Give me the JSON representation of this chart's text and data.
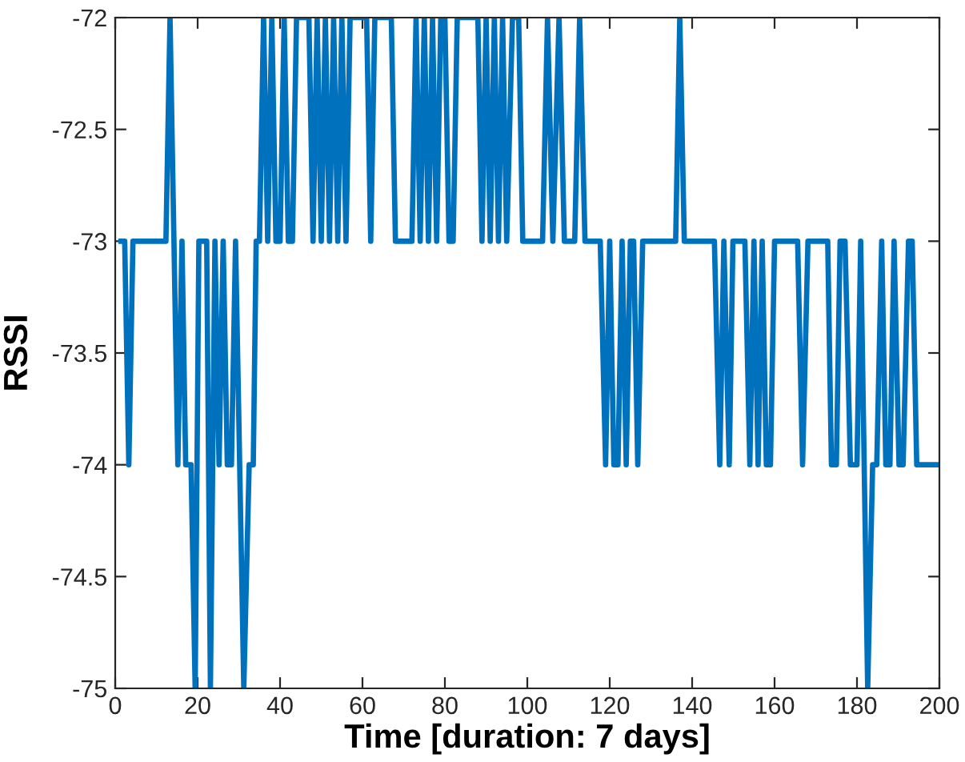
{
  "chart_data": {
    "type": "line",
    "xlabel": "Time [duration: 7 days]",
    "ylabel": "RSSI",
    "xlim": [
      0,
      200
    ],
    "ylim": [
      -75,
      -72
    ],
    "xticks": [
      0,
      20,
      40,
      60,
      80,
      100,
      120,
      140,
      160,
      180,
      200
    ],
    "yticks": [
      -75,
      -74.5,
      -74,
      -73.5,
      -73,
      -72.5,
      -72
    ],
    "grid": false,
    "marker": "none",
    "line_style": "solid",
    "series": [
      {
        "color": "#0072bd",
        "x": [
          1.4,
          2.3,
          3.3,
          4.3,
          12.3,
          13.3,
          15.2,
          16.2,
          17.1,
          18.4,
          19.4,
          20.3,
          22.2,
          23.1,
          24.2,
          25.2,
          26.2,
          27.2,
          28.2,
          29.2,
          31.2,
          32.5,
          33.5,
          34.2,
          35,
          36,
          37,
          38,
          39,
          40,
          41,
          42,
          43,
          44,
          47,
          48,
          49,
          50,
          51,
          52,
          53,
          54,
          55,
          56,
          57,
          58,
          61,
          62,
          63,
          67,
          68,
          72,
          73,
          74,
          75,
          76,
          77,
          78,
          79,
          80,
          81,
          82,
          83,
          84,
          88,
          89,
          90,
          91,
          92,
          93,
          94,
          95,
          96.4,
          97.9,
          98.9,
          103.7,
          104.9,
          106.2,
          107.7,
          109,
          111.5,
          112.7,
          114,
          117.7,
          119,
          120,
          121,
          122,
          123,
          124,
          125,
          125.8,
          126.8,
          128,
          136,
          137,
          138.1,
          145.4,
          146.7,
          147.7,
          149,
          149.9,
          152.8,
          154,
          155,
          156,
          157,
          158,
          159,
          160,
          165.6,
          166.8,
          168.1,
          172.9,
          173.8,
          175,
          175.9,
          177.1,
          178.4,
          180,
          180.9,
          182.6,
          183.8,
          184.8,
          186,
          187,
          188,
          189,
          190.2,
          191.2,
          192.5,
          193.4,
          194.5,
          200
        ],
        "values": [
          -73,
          -73,
          -74,
          -73,
          -73,
          -72,
          -74,
          -73,
          -74,
          -74,
          -75,
          -73,
          -73,
          -75,
          -73,
          -74,
          -73,
          -74,
          -74,
          -73,
          -75,
          -74,
          -74,
          -73,
          -73,
          -72,
          -73,
          -72,
          -73,
          -73,
          -72,
          -73,
          -73,
          -72,
          -72,
          -73,
          -72,
          -73,
          -72,
          -73,
          -72,
          -73,
          -72,
          -73,
          -72,
          -72,
          -72,
          -73,
          -72,
          -72,
          -73,
          -73,
          -72,
          -73,
          -72,
          -73,
          -72,
          -73,
          -72,
          -72,
          -73,
          -73,
          -72,
          -72,
          -72,
          -73,
          -72,
          -73,
          -72,
          -73,
          -72,
          -73,
          -72,
          -72,
          -73,
          -73,
          -72,
          -73,
          -72,
          -73,
          -73,
          -72,
          -73,
          -73,
          -74,
          -73,
          -74,
          -74,
          -73,
          -74,
          -73,
          -73,
          -74,
          -73,
          -73,
          -72,
          -73,
          -73,
          -74,
          -73,
          -74,
          -73,
          -73,
          -74,
          -73,
          -74,
          -73,
          -74,
          -74,
          -73,
          -73,
          -74,
          -73,
          -73,
          -74,
          -74,
          -73,
          -73,
          -74,
          -74,
          -73,
          -75,
          -74,
          -74,
          -73,
          -74,
          -74,
          -73,
          -74,
          -74,
          -73,
          -73,
          -74,
          -74
        ]
      }
    ]
  }
}
